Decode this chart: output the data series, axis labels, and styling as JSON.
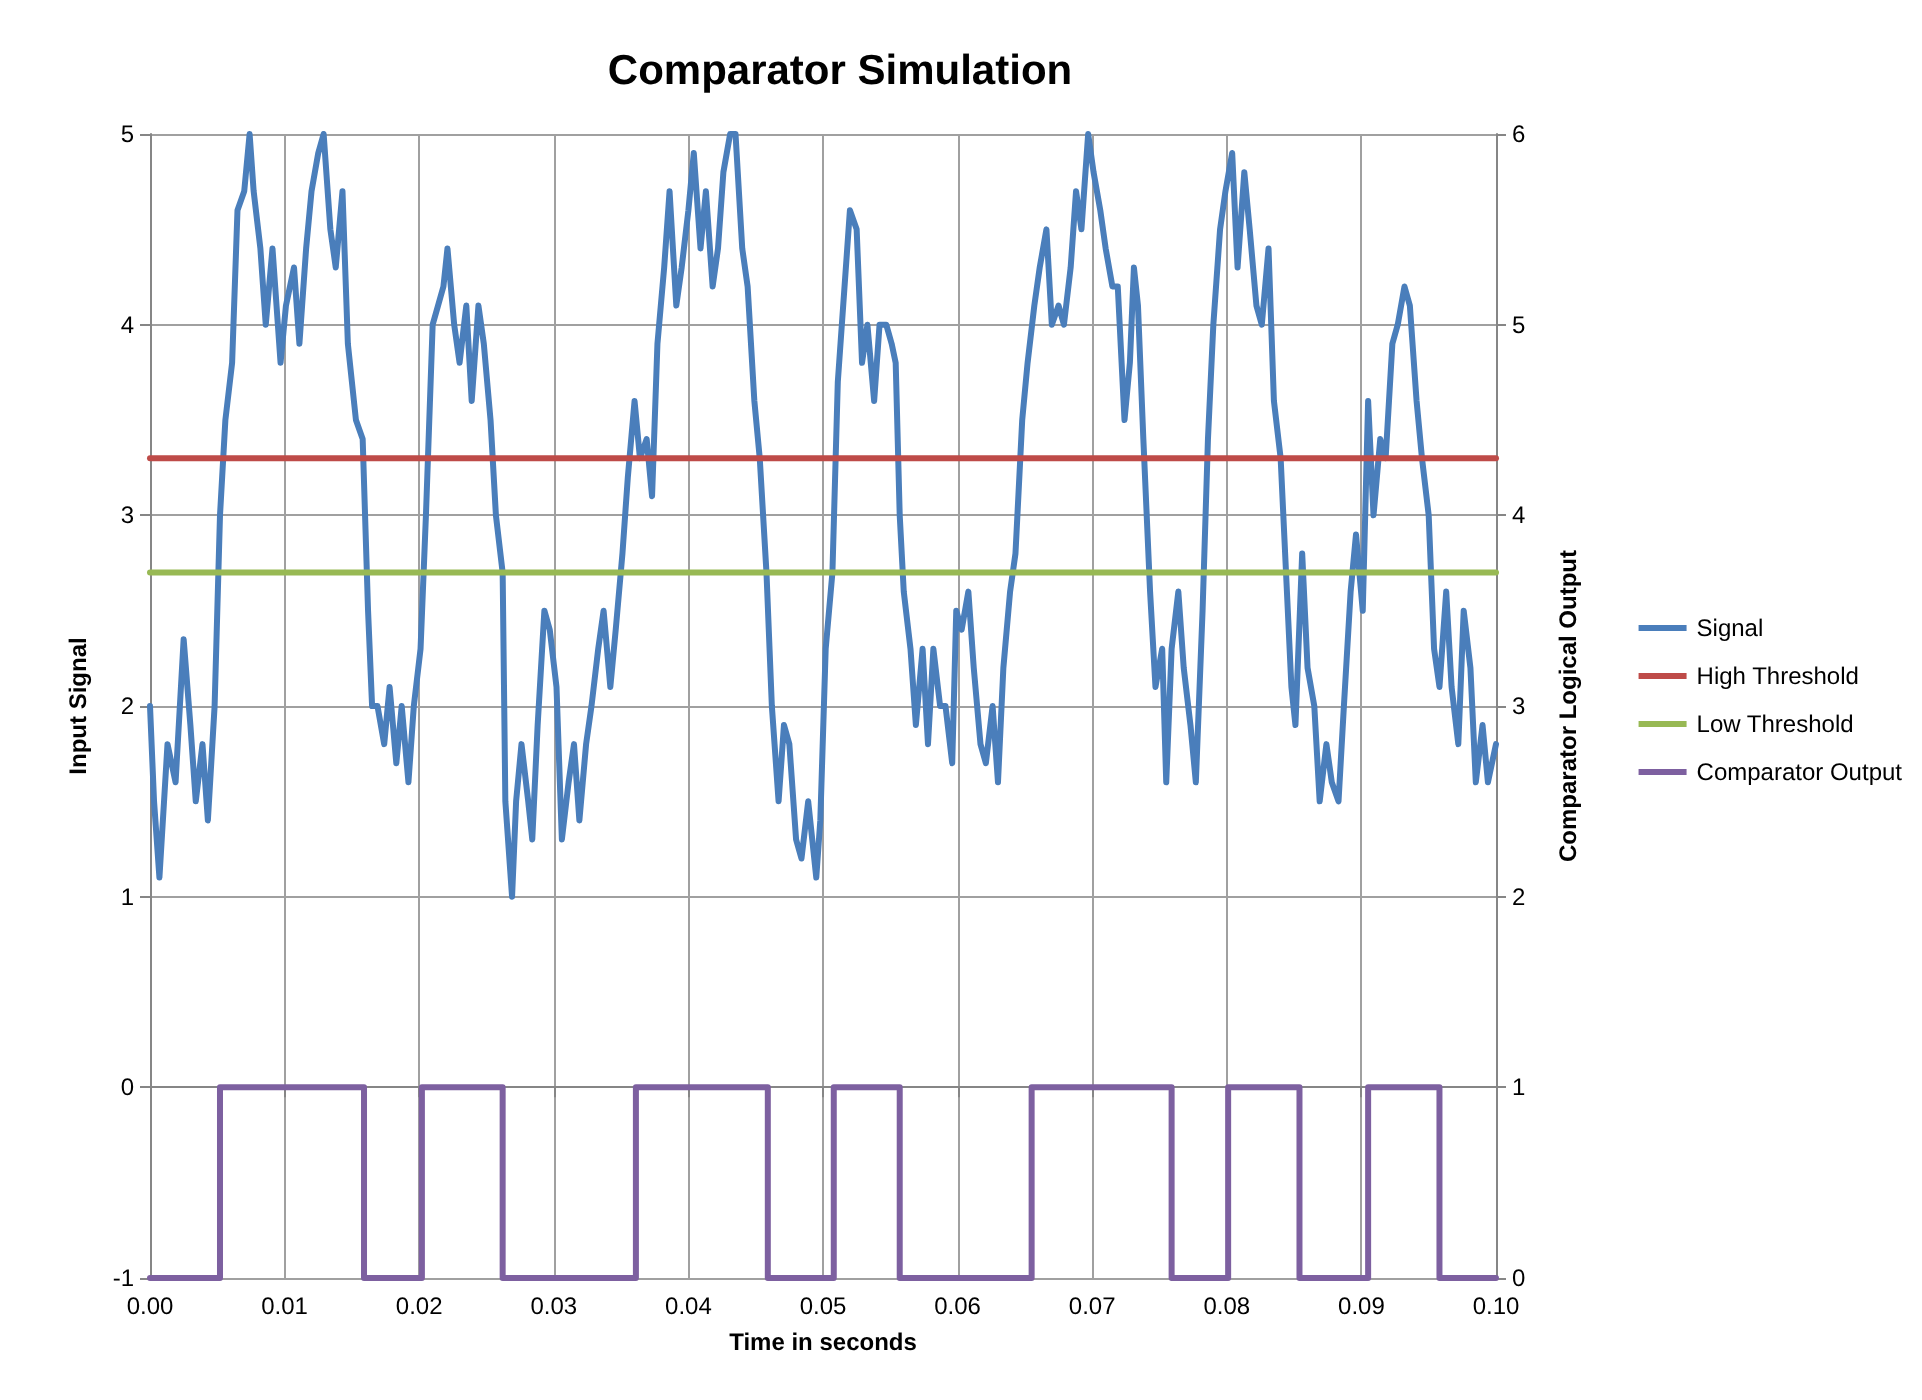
{
  "chart_data": {
    "type": "line",
    "title": "Comparator Simulation",
    "xlabel": "Time in seconds",
    "ylabel": "Input Signal",
    "y2label": "Comparator Logical Output",
    "xlim": [
      0,
      0.1
    ],
    "xticks": [
      {
        "value": 0,
        "label": "0.00"
      },
      {
        "value": 0.01,
        "label": "0.01"
      },
      {
        "value": 0.02,
        "label": "0.02"
      },
      {
        "value": 0.03,
        "label": "0.03"
      },
      {
        "value": 0.04,
        "label": "0.04"
      },
      {
        "value": 0.05,
        "label": "0.05"
      },
      {
        "value": 0.06,
        "label": "0.06"
      },
      {
        "value": 0.07,
        "label": "0.07"
      },
      {
        "value": 0.08,
        "label": "0.08"
      },
      {
        "value": 0.09,
        "label": "0.09"
      },
      {
        "value": 0.1,
        "label": "0.10"
      }
    ],
    "ylim": [
      -1,
      5
    ],
    "yticks": [
      -1,
      0,
      1,
      2,
      3,
      4,
      5
    ],
    "y2lim": [
      0,
      6
    ],
    "y2ticks": [
      0,
      1,
      2,
      3,
      4,
      5,
      6
    ],
    "grid": true,
    "legend": "right",
    "marker": "none",
    "line_style": "solid",
    "series": [
      {
        "name": "Signal",
        "color": "#4a7ebb",
        "x": [
          0,
          0.0003,
          0.0007,
          0.0013,
          0.0019,
          0.0025,
          0.003,
          0.0034,
          0.0039,
          0.0043,
          0.0048,
          0.0052,
          0.0056,
          0.0061,
          0.0065,
          0.007,
          0.0074,
          0.0077,
          0.0082,
          0.0086,
          0.0091,
          0.0097,
          0.0101,
          0.0107,
          0.0111,
          0.0116,
          0.012,
          0.0125,
          0.0129,
          0.0134,
          0.0138,
          0.0143,
          0.0147,
          0.0153,
          0.0158,
          0.0162,
          0.0165,
          0.0169,
          0.0174,
          0.0178,
          0.0183,
          0.0187,
          0.0192,
          0.0196,
          0.0201,
          0.0205,
          0.021,
          0.0214,
          0.0218,
          0.0221,
          0.0226,
          0.023,
          0.0235,
          0.0239,
          0.0244,
          0.0248,
          0.0253,
          0.0257,
          0.0262,
          0.0264,
          0.0269,
          0.0272,
          0.0276,
          0.0281,
          0.0284,
          0.0288,
          0.0293,
          0.0297,
          0.0302,
          0.0306,
          0.0311,
          0.0315,
          0.0319,
          0.0324,
          0.0328,
          0.0333,
          0.0337,
          0.0342,
          0.0346,
          0.0351,
          0.0355,
          0.036,
          0.0364,
          0.0369,
          0.0373,
          0.0377,
          0.0382,
          0.0386,
          0.0391,
          0.0395,
          0.04,
          0.0404,
          0.0409,
          0.0413,
          0.0418,
          0.0422,
          0.0426,
          0.0431,
          0.0435,
          0.044,
          0.0444,
          0.0449,
          0.0453,
          0.0458,
          0.0462,
          0.0467,
          0.0471,
          0.0475,
          0.048,
          0.0484,
          0.0489,
          0.0495,
          0.0498,
          0.0502,
          0.0507,
          0.0511,
          0.0516,
          0.052,
          0.0525,
          0.0529,
          0.0533,
          0.0538,
          0.0542,
          0.0547,
          0.0551,
          0.0554,
          0.0557,
          0.056,
          0.0565,
          0.0569,
          0.0574,
          0.0578,
          0.0582,
          0.0587,
          0.0591,
          0.0596,
          0.0599,
          0.0603,
          0.0608,
          0.0612,
          0.0617,
          0.0621,
          0.0626,
          0.063,
          0.0634,
          0.0639,
          0.0643,
          0.0648,
          0.0652,
          0.0657,
          0.0661,
          0.0666,
          0.067,
          0.0675,
          0.0679,
          0.0684,
          0.0688,
          0.0692,
          0.0697,
          0.0701,
          0.0706,
          0.071,
          0.0715,
          0.0719,
          0.0724,
          0.0728,
          0.0731,
          0.0734,
          0.0738,
          0.0743,
          0.0747,
          0.0752,
          0.0755,
          0.0759,
          0.0764,
          0.0768,
          0.0773,
          0.0777,
          0.0782,
          0.0786,
          0.079,
          0.0795,
          0.0799,
          0.0804,
          0.0808,
          0.0813,
          0.0817,
          0.0822,
          0.0826,
          0.0831,
          0.0835,
          0.084,
          0.0844,
          0.0848,
          0.0851,
          0.0856,
          0.086,
          0.0865,
          0.0869,
          0.0874,
          0.0878,
          0.0883,
          0.0887,
          0.0892,
          0.0896,
          0.0901,
          0.0905,
          0.0909,
          0.0914,
          0.0918,
          0.0923,
          0.0927,
          0.0932,
          0.0936,
          0.0941,
          0.0945,
          0.095,
          0.0954,
          0.0958,
          0.0963,
          0.0967,
          0.0972,
          0.0976,
          0.0981,
          0.0985,
          0.099,
          0.0994,
          0.1
        ],
        "values": [
          2.0,
          1.5,
          1.1,
          1.8,
          1.6,
          2.35,
          1.9,
          1.5,
          1.8,
          1.4,
          2.0,
          3.0,
          3.5,
          3.8,
          4.6,
          4.7,
          5.0,
          4.7,
          4.4,
          4.0,
          4.4,
          3.8,
          4.1,
          4.3,
          3.9,
          4.4,
          4.7,
          4.9,
          5.0,
          4.5,
          4.3,
          4.7,
          3.9,
          3.5,
          3.4,
          2.5,
          2.0,
          2.0,
          1.8,
          2.1,
          1.7,
          2.0,
          1.6,
          2.0,
          2.3,
          3.0,
          4.0,
          4.1,
          4.2,
          4.4,
          4.0,
          3.8,
          4.1,
          3.6,
          4.1,
          3.9,
          3.5,
          3.0,
          2.7,
          1.5,
          1.0,
          1.5,
          1.8,
          1.5,
          1.3,
          1.9,
          2.5,
          2.4,
          2.1,
          1.3,
          1.6,
          1.8,
          1.4,
          1.8,
          2.0,
          2.3,
          2.5,
          2.1,
          2.4,
          2.8,
          3.2,
          3.6,
          3.3,
          3.4,
          3.1,
          3.9,
          4.3,
          4.7,
          4.1,
          4.3,
          4.6,
          4.9,
          4.4,
          4.7,
          4.2,
          4.4,
          4.8,
          5.0,
          5.0,
          4.4,
          4.2,
          3.6,
          3.3,
          2.7,
          2.0,
          1.5,
          1.9,
          1.8,
          1.3,
          1.2,
          1.5,
          1.1,
          1.4,
          2.3,
          2.7,
          3.7,
          4.2,
          4.6,
          4.5,
          3.8,
          4.0,
          3.6,
          4.0,
          4.0,
          3.9,
          3.8,
          3.0,
          2.6,
          2.3,
          1.9,
          2.3,
          1.8,
          2.3,
          2.0,
          2.0,
          1.7,
          2.5,
          2.4,
          2.6,
          2.2,
          1.8,
          1.7,
          2.0,
          1.6,
          2.2,
          2.6,
          2.8,
          3.5,
          3.8,
          4.1,
          4.3,
          4.5,
          4.0,
          4.1,
          4.0,
          4.3,
          4.7,
          4.5,
          5.0,
          4.8,
          4.6,
          4.4,
          4.2,
          4.2,
          3.5,
          3.8,
          4.3,
          4.1,
          3.4,
          2.6,
          2.1,
          2.3,
          1.6,
          2.3,
          2.6,
          2.2,
          1.9,
          1.6,
          2.5,
          3.4,
          4.0,
          4.5,
          4.7,
          4.9,
          4.3,
          4.8,
          4.5,
          4.1,
          4.0,
          4.4,
          3.6,
          3.3,
          2.7,
          2.1,
          1.9,
          2.8,
          2.2,
          2.0,
          1.5,
          1.8,
          1.6,
          1.5,
          2.0,
          2.6,
          2.9,
          2.5,
          3.6,
          3.0,
          3.4,
          3.3,
          3.9,
          4.0,
          4.2,
          4.1,
          3.6,
          3.3,
          3.0,
          2.3,
          2.1,
          2.6,
          2.1,
          1.8,
          2.5,
          2.2,
          1.6,
          1.9,
          1.6,
          1.8
        ]
      },
      {
        "name": "High Threshold",
        "color": "#be4b48",
        "x": [
          0,
          0.1
        ],
        "values": [
          3.3,
          3.3
        ]
      },
      {
        "name": "Low Threshold",
        "color": "#98b954",
        "x": [
          0,
          0.1
        ],
        "values": [
          2.7,
          2.7
        ]
      },
      {
        "name": "Comparator Output",
        "color": "#7d60a0",
        "type": "step",
        "axis": "y2",
        "x": [
          0,
          0.0052,
          0.0159,
          0.0202,
          0.0262,
          0.0361,
          0.0459,
          0.0508,
          0.0557,
          0.0655,
          0.0759,
          0.0801,
          0.0854,
          0.0905,
          0.0958,
          0.1
        ],
        "values": [
          0,
          1,
          0,
          1,
          0,
          1,
          0,
          1,
          0,
          1,
          0,
          1,
          0,
          1,
          0,
          0
        ]
      }
    ]
  }
}
